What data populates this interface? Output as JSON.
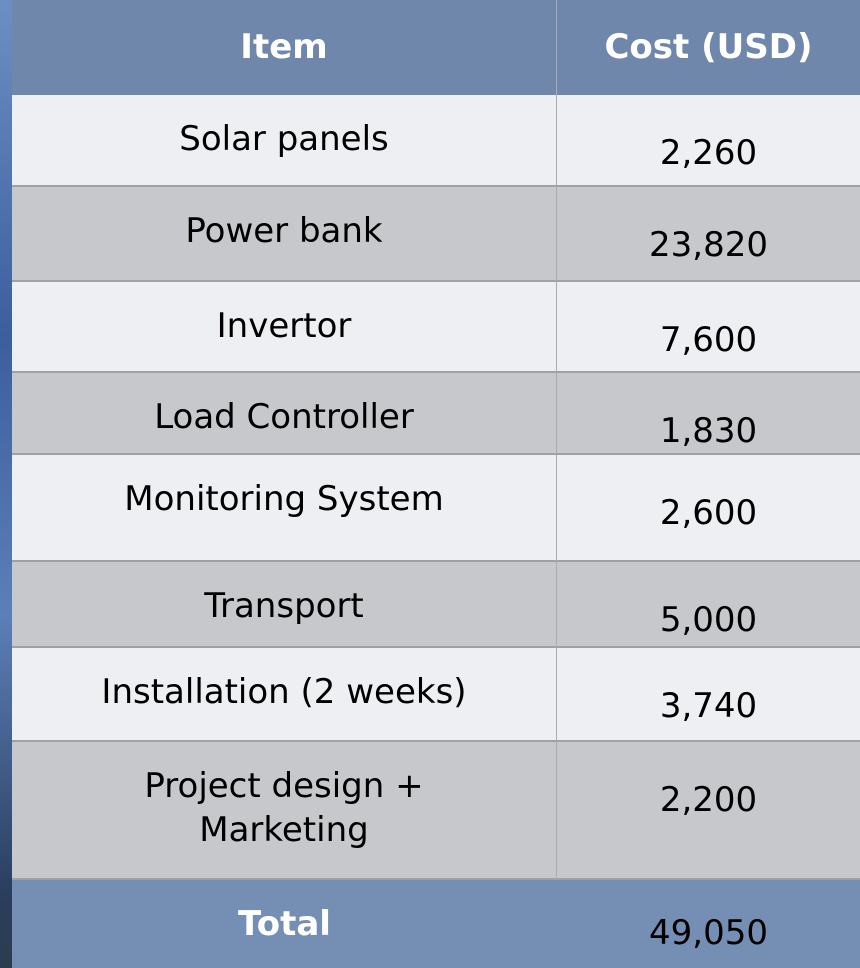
{
  "table": {
    "header": [
      "Item",
      "Cost (USD)"
    ],
    "rows": [
      [
        "Solar panels",
        "2,260"
      ],
      [
        "Power bank",
        "23,820"
      ],
      [
        "Invertor",
        "7,600"
      ],
      [
        "Load Controller",
        "1,830"
      ],
      [
        "Monitoring System",
        "2,600"
      ],
      [
        "Transport",
        "5,000"
      ],
      [
        "Installation (2 weeks)",
        "3,740"
      ],
      [
        "Project design +\nMarketing",
        "2,200"
      ]
    ],
    "total": [
      "Total",
      "49,050"
    ]
  }
}
